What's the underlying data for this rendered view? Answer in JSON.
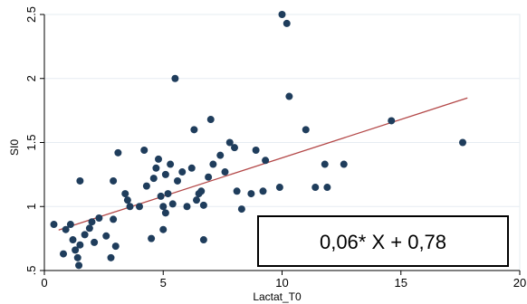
{
  "chart_data": {
    "type": "scatter",
    "title": "",
    "xlabel": "Lactat_T0",
    "ylabel": "SI0",
    "xlim": [
      0,
      20
    ],
    "ylim": [
      0.5,
      2.5
    ],
    "x_ticks": [
      0,
      5,
      10,
      15,
      20
    ],
    "y_ticks": [
      0.5,
      1,
      1.5,
      2,
      2.5
    ],
    "x_tick_labels": [
      "0",
      "5",
      "10",
      "15",
      "20"
    ],
    "y_tick_labels": [
      ".5",
      "1",
      "1.5",
      "2",
      "2.5"
    ],
    "grid": "horizontal",
    "colors": {
      "points": "#1f3d5c",
      "fit_line": "#b34747",
      "grid": "#e6ecf2",
      "axis": "#000000"
    },
    "fit_line": {
      "slope": 0.06,
      "intercept": 0.78,
      "x_range": [
        0.6,
        17.8
      ]
    },
    "annotation": "0,06* X + 0,78",
    "points": [
      [
        0.4,
        0.86
      ],
      [
        0.8,
        0.63
      ],
      [
        0.9,
        0.82
      ],
      [
        1.1,
        0.86
      ],
      [
        1.2,
        0.74
      ],
      [
        1.3,
        0.66
      ],
      [
        1.4,
        0.6
      ],
      [
        1.45,
        0.54
      ],
      [
        1.5,
        0.7
      ],
      [
        1.5,
        1.2
      ],
      [
        1.7,
        0.78
      ],
      [
        1.9,
        0.83
      ],
      [
        2.0,
        0.88
      ],
      [
        2.1,
        0.72
      ],
      [
        2.3,
        0.91
      ],
      [
        2.6,
        0.77
      ],
      [
        2.8,
        0.6
      ],
      [
        2.9,
        0.9
      ],
      [
        3.0,
        0.69
      ],
      [
        2.9,
        1.2
      ],
      [
        3.1,
        1.42
      ],
      [
        3.4,
        1.1
      ],
      [
        3.5,
        1.05
      ],
      [
        3.6,
        1.0
      ],
      [
        4.0,
        1.0
      ],
      [
        4.2,
        1.44
      ],
      [
        4.3,
        1.16
      ],
      [
        4.5,
        0.75
      ],
      [
        4.6,
        1.22
      ],
      [
        4.7,
        1.3
      ],
      [
        4.8,
        1.37
      ],
      [
        4.9,
        1.08
      ],
      [
        5.0,
        1.0
      ],
      [
        5.0,
        0.82
      ],
      [
        5.1,
        0.95
      ],
      [
        5.1,
        1.25
      ],
      [
        5.2,
        1.1
      ],
      [
        5.3,
        1.33
      ],
      [
        5.4,
        1.02
      ],
      [
        5.5,
        2.0
      ],
      [
        5.6,
        1.2
      ],
      [
        5.8,
        1.27
      ],
      [
        6.0,
        1.0
      ],
      [
        6.2,
        1.3
      ],
      [
        6.3,
        1.6
      ],
      [
        6.4,
        1.05
      ],
      [
        6.5,
        1.1
      ],
      [
        6.6,
        1.12
      ],
      [
        6.7,
        0.74
      ],
      [
        6.7,
        1.01
      ],
      [
        6.9,
        1.23
      ],
      [
        7.0,
        1.68
      ],
      [
        7.1,
        1.33
      ],
      [
        7.4,
        1.4
      ],
      [
        7.6,
        1.27
      ],
      [
        7.8,
        1.5
      ],
      [
        8.0,
        1.46
      ],
      [
        8.1,
        1.12
      ],
      [
        8.3,
        0.98
      ],
      [
        8.7,
        1.1
      ],
      [
        8.9,
        1.44
      ],
      [
        9.2,
        1.12
      ],
      [
        9.3,
        1.36
      ],
      [
        9.9,
        1.15
      ],
      [
        10.0,
        2.5
      ],
      [
        10.2,
        2.43
      ],
      [
        10.3,
        1.86
      ],
      [
        11.0,
        1.6
      ],
      [
        11.4,
        1.15
      ],
      [
        11.8,
        1.33
      ],
      [
        11.9,
        1.15
      ],
      [
        12.6,
        1.33
      ],
      [
        14.6,
        1.67
      ],
      [
        17.6,
        1.5
      ]
    ],
    "legend": ""
  }
}
